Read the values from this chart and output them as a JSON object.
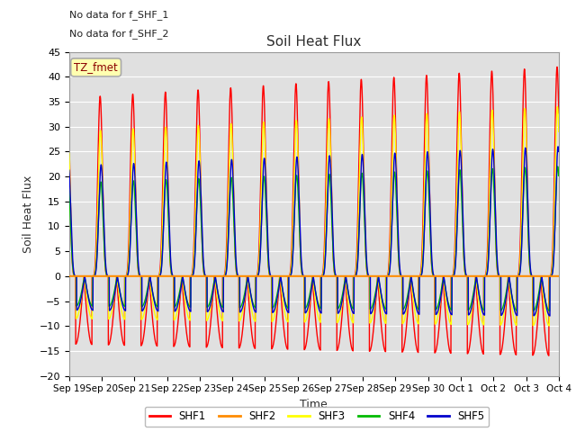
{
  "title": "Soil Heat Flux",
  "xlabel": "Time",
  "ylabel": "Soil Heat Flux",
  "ylim": [
    -20,
    45
  ],
  "annotation1": "No data for f_SHF_1",
  "annotation2": "No data for f_SHF_2",
  "tz_label": "TZ_fmet",
  "series_colors": {
    "SHF1": "#FF0000",
    "SHF2": "#FF8C00",
    "SHF3": "#FFFF00",
    "SHF4": "#00BB00",
    "SHF5": "#0000CC"
  },
  "x_tick_labels": [
    "Sep 19",
    "Sep 20",
    "Sep 21",
    "Sep 22",
    "Sep 23",
    "Sep 24",
    "Sep 25",
    "Sep 26",
    "Sep 27",
    "Sep 28",
    "Sep 29",
    "Sep 30",
    "Oct 1",
    "Oct 2",
    "Oct 3",
    "Oct 4"
  ],
  "background_color": "#E0E0E0",
  "grid_color": "#FFFFFF",
  "n_days": 15,
  "figsize": [
    6.4,
    4.8
  ],
  "dpi": 100
}
